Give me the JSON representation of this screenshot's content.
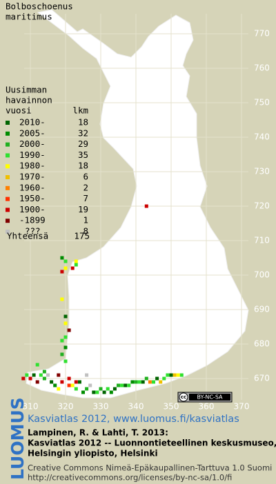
{
  "header": {
    "title_lines": [
      "Bolboschoenus",
      "maritimus"
    ]
  },
  "legend": {
    "heading_lines": [
      "Uusimman",
      "havainnon",
      "vuosi"
    ],
    "count_heading": "lkm",
    "rows": [
      {
        "label": "2010-",
        "count": 18,
        "color": "#006400"
      },
      {
        "label": "2005-",
        "count": 32,
        "color": "#008c00"
      },
      {
        "label": "2000-",
        "count": 29,
        "color": "#20b020"
      },
      {
        "label": "1990-",
        "count": 35,
        "color": "#30e030"
      },
      {
        "label": "1980-",
        "count": 18,
        "color": "#ffff00"
      },
      {
        "label": "1970-",
        "count": 6,
        "color": "#f0c000"
      },
      {
        "label": "1960-",
        "count": 2,
        "color": "#ff8000"
      },
      {
        "label": "1950-",
        "count": 7,
        "color": "#ff3000"
      },
      {
        "label": "1900-",
        "count": 19,
        "color": "#cc0000"
      },
      {
        "label": "-1899",
        "count": 1,
        "color": "#800000"
      },
      {
        "label": "???",
        "count": 8,
        "color": "#c0c0c0"
      }
    ],
    "total_label": "Yhteensä",
    "total": 175
  },
  "grid": {
    "y_labels": [
      770,
      760,
      750,
      740,
      730,
      720,
      710,
      700,
      690,
      680,
      670
    ],
    "x_labels": [
      310,
      320,
      330,
      340,
      350,
      360,
      370
    ]
  },
  "points": [
    [
      309,
      671,
      3
    ],
    [
      310,
      670,
      8
    ],
    [
      311,
      671,
      0
    ],
    [
      312,
      669,
      9
    ],
    [
      313,
      671,
      3
    ],
    [
      314,
      670,
      2
    ],
    [
      316,
      669,
      0
    ],
    [
      317,
      668,
      1
    ],
    [
      318,
      667,
      4
    ],
    [
      319,
      669,
      8
    ],
    [
      321,
      668,
      7
    ],
    [
      322,
      668,
      4
    ],
    [
      323,
      667,
      3
    ],
    [
      324,
      669,
      0
    ],
    [
      325,
      666,
      1
    ],
    [
      326,
      667,
      2
    ],
    [
      327,
      668,
      10
    ],
    [
      328,
      666,
      0
    ],
    [
      329,
      666,
      3
    ],
    [
      330,
      667,
      2
    ],
    [
      331,
      666,
      0
    ],
    [
      332,
      667,
      3
    ],
    [
      333,
      666,
      1
    ],
    [
      334,
      667,
      0
    ],
    [
      335,
      668,
      2
    ],
    [
      336,
      668,
      3
    ],
    [
      337,
      668,
      0
    ],
    [
      338,
      668,
      3
    ],
    [
      339,
      669,
      1
    ],
    [
      340,
      669,
      2
    ],
    [
      341,
      669,
      3
    ],
    [
      342,
      669,
      0
    ],
    [
      343,
      670,
      2
    ],
    [
      344,
      669,
      6
    ],
    [
      345,
      669,
      3
    ],
    [
      346,
      670,
      0
    ],
    [
      347,
      669,
      5
    ],
    [
      348,
      670,
      3
    ],
    [
      349,
      671,
      3
    ],
    [
      350,
      671,
      0
    ],
    [
      351,
      671,
      5
    ],
    [
      352,
      671,
      4
    ],
    [
      353,
      671,
      3
    ],
    [
      318,
      671,
      9
    ],
    [
      321,
      670,
      8
    ],
    [
      323,
      669,
      8
    ],
    [
      308,
      670,
      8
    ],
    [
      320,
      675,
      3
    ],
    [
      319,
      677,
      2
    ],
    [
      320,
      679,
      1
    ],
    [
      319,
      681,
      3
    ],
    [
      320,
      682,
      3
    ],
    [
      321,
      684,
      9
    ],
    [
      320,
      686,
      4
    ],
    [
      320,
      688,
      0
    ],
    [
      319,
      693,
      4
    ],
    [
      319,
      701,
      8
    ],
    [
      320,
      702,
      4
    ],
    [
      323,
      703,
      3
    ],
    [
      323,
      704,
      4
    ],
    [
      322,
      702,
      8
    ],
    [
      320,
      704,
      3
    ],
    [
      319,
      705,
      1
    ],
    [
      312,
      674,
      3
    ],
    [
      314,
      672,
      2
    ],
    [
      343,
      720,
      8
    ],
    [
      315,
      671,
      10
    ],
    [
      326,
      671,
      10
    ]
  ],
  "badge": {
    "cc": "cc",
    "license": "BY-NC-SA"
  },
  "footer": {
    "logo": "LUOMUS",
    "link": "Kasviatlas 2012, www.luomus.fi/kasviatlas",
    "citation_lines": [
      "Lampinen, R. & Lahti, T. 2013:",
      "Kasviatlas 2012 -- Luonnontieteellinen keskusmuseo,",
      "Helsingin yliopisto, Helsinki"
    ],
    "license_lines": [
      "Creative Commons Nimeä-Epäkaupallinen-Tarttuva 1.0 Suomi",
      "http://creativecommons.org/licenses/by-nc-sa/1.0/fi"
    ]
  }
}
